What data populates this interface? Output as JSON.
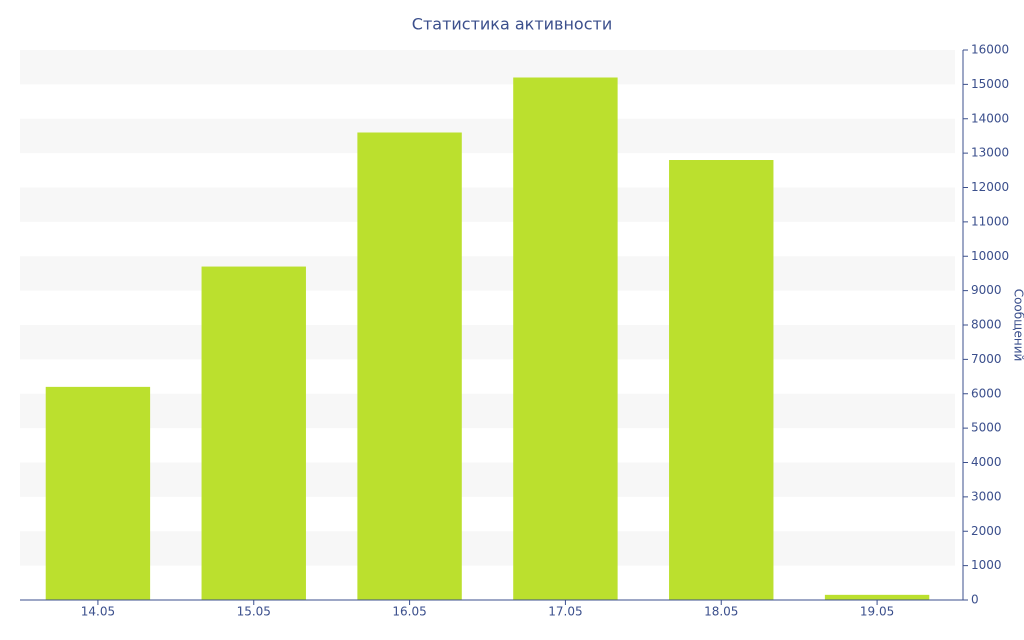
{
  "chart_data": {
    "type": "bar",
    "title": "Статистика активности",
    "y_label": "Сообщений",
    "categories": [
      "14.05",
      "15.05",
      "16.05",
      "17.05",
      "18.05",
      "19.05"
    ],
    "values": [
      6200,
      9700,
      13600,
      15200,
      12800,
      150
    ],
    "color": "#bbe02e",
    "ylim": [
      0,
      16000
    ],
    "yticks": [
      0,
      1000,
      2000,
      3000,
      4000,
      5000,
      6000,
      7000,
      8000,
      9000,
      10000,
      11000,
      12000,
      13000,
      14000,
      15000,
      16000
    ],
    "grid": true,
    "y_axis_side": "right"
  }
}
